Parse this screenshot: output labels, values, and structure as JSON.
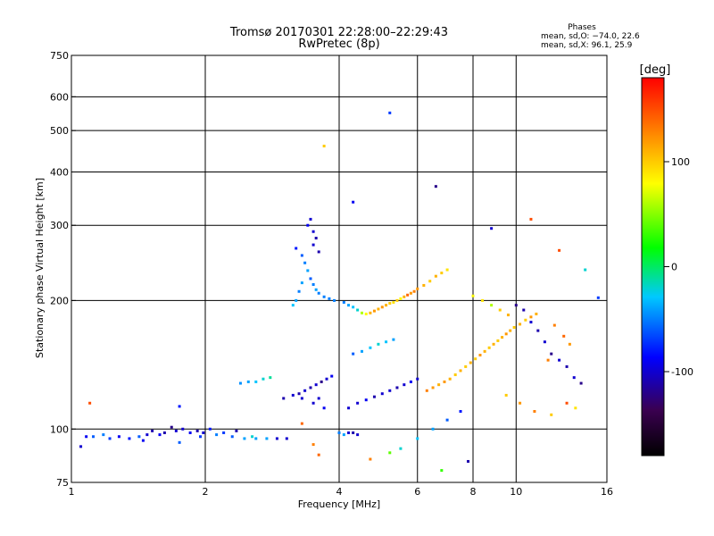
{
  "chart_data": {
    "type": "scatter",
    "title": "Tromsø 20170301 22:28:00–22:29:43",
    "subtitle": "RwPretec (8p)",
    "stats": {
      "heading": "Phases",
      "line_o": "mean, sd,O: −74.0, 22.6",
      "line_x": "mean, sd,X:  96.1, 25.9"
    },
    "xlabel": "Frequency [MHz]",
    "ylabel": "Stationary phase Virtual Height [km]",
    "x_scale": "log",
    "y_scale": "log",
    "xlim": [
      1,
      16
    ],
    "ylim": [
      75,
      750
    ],
    "x_ticks": [
      1,
      2,
      4,
      6,
      8,
      10,
      16
    ],
    "x_gridlines": [
      2,
      4,
      6,
      8,
      10
    ],
    "y_ticks": [
      75,
      100,
      200,
      300,
      400,
      500,
      600,
      750
    ],
    "y_gridlines": [
      100,
      200,
      300,
      400,
      500,
      600
    ],
    "grid": true,
    "colorbar": {
      "label": "[deg]",
      "min": -180,
      "max": 180,
      "ticks": [
        100,
        0,
        -100
      ],
      "colors": [
        "#000000",
        "#3a0050",
        "#0000ff",
        "#00c8ff",
        "#00ff00",
        "#ffff00",
        "#ff8000",
        "#ff0000"
      ]
    },
    "series": [
      {
        "points": [
          [
            1.05,
            91,
            -100
          ],
          [
            1.08,
            96,
            -90
          ],
          [
            1.12,
            96,
            -60
          ],
          [
            1.18,
            97,
            -50
          ],
          [
            1.22,
            95,
            -70
          ],
          [
            1.28,
            96,
            -90
          ],
          [
            1.35,
            95,
            -80
          ],
          [
            1.42,
            96,
            -60
          ],
          [
            1.48,
            97,
            -100
          ],
          [
            1.52,
            99,
            -110
          ],
          [
            1.58,
            97,
            -90
          ],
          [
            1.62,
            98,
            -110
          ],
          [
            1.68,
            101,
            -120
          ],
          [
            1.72,
            99,
            -100
          ],
          [
            1.78,
            100,
            -100
          ],
          [
            1.85,
            98,
            -90
          ],
          [
            1.92,
            99,
            -110
          ],
          [
            1.98,
            98,
            -100
          ],
          [
            2.05,
            100,
            -80
          ],
          [
            2.12,
            97,
            -50
          ],
          [
            2.2,
            98,
            -70
          ],
          [
            2.3,
            96,
            -60
          ],
          [
            2.45,
            95,
            -40
          ],
          [
            2.6,
            95,
            -40
          ],
          [
            2.75,
            95,
            -40
          ],
          [
            2.9,
            95,
            -100
          ],
          [
            3.05,
            95,
            -100
          ],
          [
            1.45,
            94,
            -90
          ],
          [
            1.75,
            93,
            -60
          ],
          [
            1.95,
            96,
            -70
          ],
          [
            2.35,
            99,
            -110
          ],
          [
            2.55,
            96,
            -20
          ],
          [
            2.4,
            128,
            -45
          ],
          [
            2.5,
            129,
            -40
          ],
          [
            2.6,
            129,
            -30
          ],
          [
            2.7,
            131,
            -20
          ],
          [
            2.8,
            132,
            -10
          ],
          [
            3.0,
            118,
            -110
          ],
          [
            3.15,
            120,
            -100
          ],
          [
            3.25,
            121,
            -110
          ],
          [
            3.35,
            123,
            -100
          ],
          [
            3.45,
            125,
            -110
          ],
          [
            3.55,
            127,
            -100
          ],
          [
            3.65,
            129,
            -120
          ],
          [
            3.75,
            131,
            -100
          ],
          [
            3.85,
            133,
            -90
          ],
          [
            3.3,
            118,
            -100
          ],
          [
            3.5,
            115,
            -100
          ],
          [
            3.7,
            112,
            -90
          ],
          [
            3.6,
            118,
            -100
          ],
          [
            3.2,
            265,
            -80
          ],
          [
            3.3,
            255,
            -60
          ],
          [
            3.35,
            245,
            -50
          ],
          [
            3.4,
            235,
            -40
          ],
          [
            3.45,
            225,
            -60
          ],
          [
            3.5,
            218,
            -50
          ],
          [
            3.55,
            212,
            -40
          ],
          [
            3.6,
            208,
            -50
          ],
          [
            3.7,
            204,
            -50
          ],
          [
            3.8,
            202,
            -50
          ],
          [
            3.9,
            200,
            -50
          ],
          [
            3.4,
            300,
            -90
          ],
          [
            3.45,
            310,
            -100
          ],
          [
            3.5,
            290,
            -100
          ],
          [
            3.55,
            280,
            -110
          ],
          [
            3.3,
            220,
            -40
          ],
          [
            3.25,
            210,
            -50
          ],
          [
            3.2,
            200,
            -40
          ],
          [
            3.15,
            195,
            -30
          ],
          [
            3.5,
            270,
            -100
          ],
          [
            3.6,
            260,
            -110
          ],
          [
            4.1,
            198,
            -50
          ],
          [
            4.2,
            195,
            -40
          ],
          [
            4.3,
            193,
            -30
          ],
          [
            4.4,
            190,
            -20
          ],
          [
            4.5,
            187,
            60
          ],
          [
            4.6,
            186,
            80
          ],
          [
            4.7,
            187,
            110
          ],
          [
            4.8,
            189,
            120
          ],
          [
            4.9,
            191,
            110
          ],
          [
            5.0,
            193,
            120
          ],
          [
            5.1,
            195,
            110
          ],
          [
            5.2,
            197,
            100
          ],
          [
            5.3,
            198,
            90
          ],
          [
            5.4,
            200,
            100
          ],
          [
            5.5,
            202,
            80
          ],
          [
            5.6,
            204,
            110
          ],
          [
            5.7,
            206,
            140
          ],
          [
            5.8,
            208,
            120
          ],
          [
            5.9,
            210,
            130
          ],
          [
            6.0,
            213,
            120
          ],
          [
            6.2,
            217,
            110
          ],
          [
            6.4,
            222,
            100
          ],
          [
            6.6,
            228,
            110
          ],
          [
            6.8,
            232,
            100
          ],
          [
            7.0,
            236,
            90
          ],
          [
            4.0,
            98,
            -50
          ],
          [
            4.1,
            97,
            -40
          ],
          [
            4.2,
            98,
            -100
          ],
          [
            4.3,
            98,
            -110
          ],
          [
            4.4,
            97,
            -100
          ],
          [
            4.3,
            150,
            -60
          ],
          [
            4.5,
            152,
            -40
          ],
          [
            4.7,
            155,
            -30
          ],
          [
            4.9,
            158,
            -20
          ],
          [
            5.1,
            160,
            -30
          ],
          [
            5.3,
            162,
            -40
          ],
          [
            4.2,
            112,
            -100
          ],
          [
            4.4,
            115,
            -100
          ],
          [
            4.6,
            117,
            -90
          ],
          [
            4.8,
            119,
            -110
          ],
          [
            5.0,
            121,
            -100
          ],
          [
            5.2,
            123,
            -100
          ],
          [
            5.4,
            125,
            -110
          ],
          [
            5.6,
            127,
            -100
          ],
          [
            5.8,
            129,
            -90
          ],
          [
            6.0,
            131,
            -100
          ],
          [
            6.3,
            123,
            130
          ],
          [
            6.5,
            125,
            120
          ],
          [
            6.7,
            127,
            110
          ],
          [
            6.9,
            129,
            120
          ],
          [
            7.1,
            131,
            110
          ],
          [
            7.3,
            134,
            100
          ],
          [
            7.5,
            137,
            110
          ],
          [
            7.7,
            140,
            100
          ],
          [
            7.9,
            143,
            110
          ],
          [
            8.1,
            146,
            100
          ],
          [
            8.3,
            149,
            120
          ],
          [
            8.5,
            152,
            110
          ],
          [
            8.7,
            155,
            100
          ],
          [
            8.9,
            158,
            110
          ],
          [
            9.1,
            161,
            100
          ],
          [
            9.3,
            164,
            110
          ],
          [
            9.5,
            167,
            120
          ],
          [
            9.7,
            170,
            110
          ],
          [
            9.9,
            173,
            100
          ],
          [
            10.2,
            176,
            110
          ],
          [
            10.5,
            180,
            100
          ],
          [
            10.8,
            183,
            120
          ],
          [
            11.1,
            186,
            110
          ],
          [
            8.0,
            205,
            80
          ],
          [
            8.4,
            200,
            90
          ],
          [
            8.8,
            195,
            60
          ],
          [
            9.2,
            190,
            100
          ],
          [
            9.6,
            185,
            110
          ],
          [
            10.0,
            195,
            -120
          ],
          [
            10.4,
            190,
            -110
          ],
          [
            10.8,
            178,
            -100
          ],
          [
            11.2,
            170,
            -110
          ],
          [
            11.6,
            160,
            -100
          ],
          [
            12.0,
            150,
            -120
          ],
          [
            12.5,
            145,
            -100
          ],
          [
            13.0,
            140,
            -110
          ],
          [
            13.5,
            132,
            -100
          ],
          [
            14.0,
            128,
            -120
          ],
          [
            12.2,
            175,
            130
          ],
          [
            12.8,
            165,
            140
          ],
          [
            13.2,
            158,
            120
          ],
          [
            11.8,
            145,
            130
          ],
          [
            9.5,
            120,
            100
          ],
          [
            10.2,
            115,
            120
          ],
          [
            11.0,
            110,
            130
          ],
          [
            12.0,
            108,
            100
          ],
          [
            13.0,
            115,
            150
          ],
          [
            13.6,
            112,
            90
          ],
          [
            5.2,
            550,
            -70
          ],
          [
            3.7,
            460,
            100
          ],
          [
            6.6,
            370,
            -120
          ],
          [
            4.3,
            340,
            -90
          ],
          [
            8.8,
            295,
            -100
          ],
          [
            10.8,
            310,
            150
          ],
          [
            12.5,
            262,
            150
          ],
          [
            14.3,
            236,
            -20
          ],
          [
            15.3,
            203,
            -70
          ],
          [
            6.0,
            95,
            -30
          ],
          [
            6.5,
            100,
            -40
          ],
          [
            7.0,
            105,
            -60
          ],
          [
            7.5,
            110,
            -80
          ],
          [
            5.5,
            90,
            -20
          ],
          [
            7.8,
            84,
            -110
          ],
          [
            4.7,
            85,
            130
          ],
          [
            5.2,
            88,
            40
          ],
          [
            3.5,
            92,
            130
          ],
          [
            3.6,
            87,
            140
          ],
          [
            1.1,
            115,
            150
          ],
          [
            1.75,
            113,
            -80
          ],
          [
            3.3,
            103,
            140
          ],
          [
            6.8,
            80,
            30
          ]
        ]
      }
    ]
  }
}
